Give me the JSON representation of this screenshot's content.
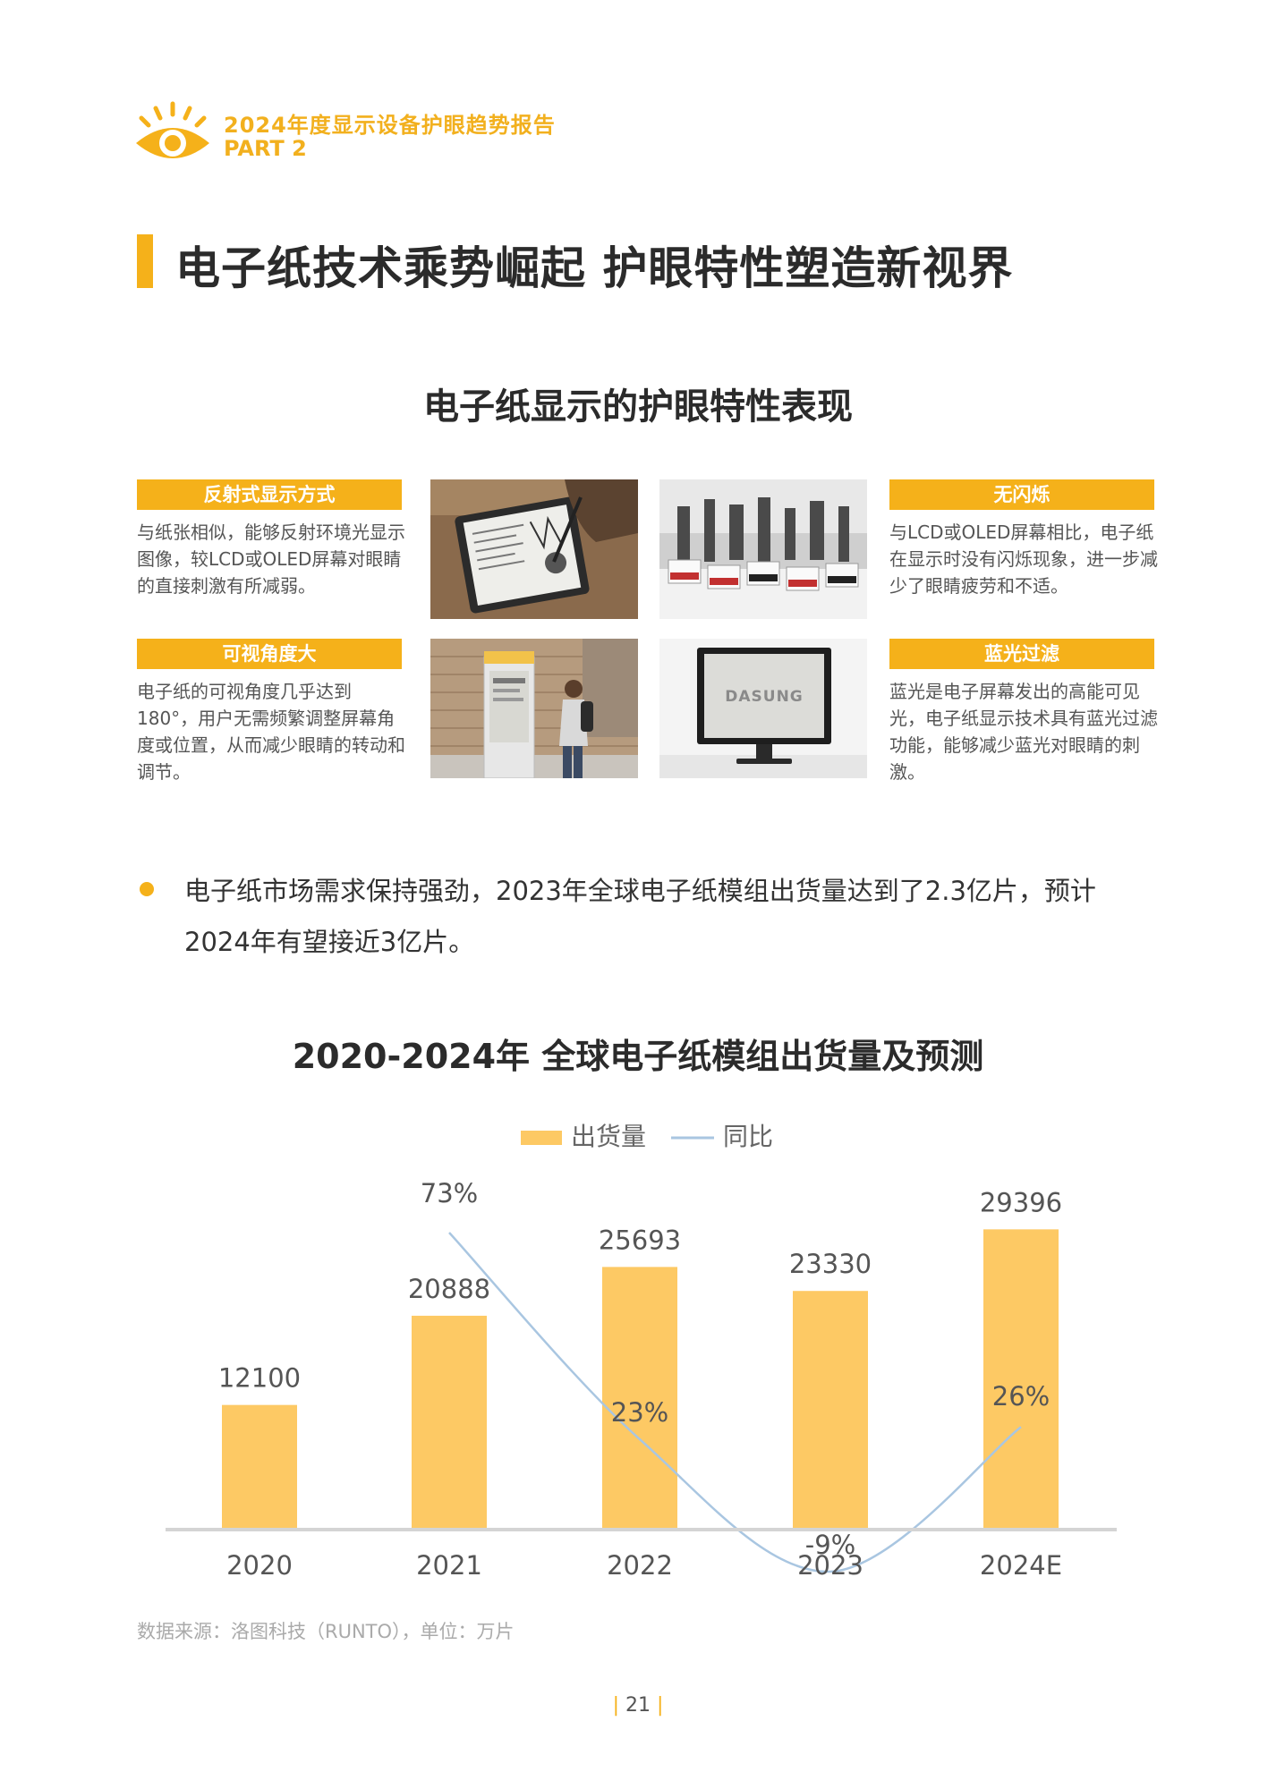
{
  "header": {
    "report_title": "2024年度显示设备护眼趋势报告",
    "part": "PART 2"
  },
  "section_title": "电子纸技术乘势崛起  护眼特性塑造新视界",
  "figure": {
    "title": "电子纸显示的护眼特性表现",
    "features": [
      {
        "title": "反射式显示方式",
        "text": "与纸张相似，能够反射环境光显示图像，较LCD或OLED屏幕对眼睛的直接刺激有所减弱。"
      },
      {
        "title": "可视角度大",
        "text": "电子纸的可视角度几乎达到180°，用户无需频繁调整屏幕角度或位置，从而减少眼睛的转动和调节。"
      },
      {
        "title": "无闪烁",
        "text": "与LCD或OLED屏幕相比，电子纸在显示时没有闪烁现象，进一步减少了眼睛疲劳和不适。"
      },
      {
        "title": "蓝光过滤",
        "text": "蓝光是电子屏幕发出的高能可见光，电子纸显示技术具有蓝光过滤功能，能够减少蓝光对眼睛的刺激。"
      }
    ],
    "photos": [
      "ereader-writing-photo",
      "price-tags-photo",
      "outdoor-kiosk-photo",
      "eink-monitor-photo"
    ],
    "monitor_brand": "DASUNG"
  },
  "bullet": "电子纸市场需求保持强劲，2023年全球电子纸模组出货量达到了2.3亿片，预计2024年有望接近3亿片。",
  "chart_data": {
    "type": "bar",
    "title": "2020-2024年 全球电子纸模组出货量及预测",
    "categories": [
      "2020",
      "2021",
      "2022",
      "2023",
      "2024E"
    ],
    "series": [
      {
        "name": "出货量",
        "type": "bar",
        "values": [
          12100,
          20888,
          25693,
          23330,
          29396
        ],
        "labels": [
          "12100",
          "20888",
          "25693",
          "23330",
          "29396"
        ],
        "color": "#fdc964"
      },
      {
        "name": "同比",
        "type": "line",
        "values": [
          null,
          73,
          23,
          -9,
          26
        ],
        "labels": [
          "",
          "73%",
          "23%",
          "-9%",
          "26%"
        ],
        "color": "#a9c6e1"
      }
    ],
    "legend_position": "top-center",
    "grid": false
  },
  "source_note": "数据来源：洛图科技（RUNTO），单位：万片",
  "page_number": "21"
}
